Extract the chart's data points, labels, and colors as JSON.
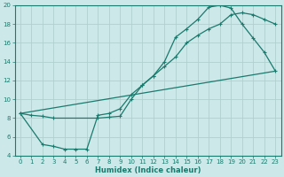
{
  "xlabel": "Humidex (Indice chaleur)",
  "bg_color": "#cce8e8",
  "grid_color": "#b0d0d0",
  "line_color": "#1a7a6e",
  "xlim": [
    -0.5,
    23.5
  ],
  "ylim": [
    4,
    20
  ],
  "xticks": [
    0,
    1,
    2,
    3,
    4,
    5,
    6,
    7,
    8,
    9,
    10,
    11,
    12,
    13,
    14,
    15,
    16,
    17,
    18,
    19,
    20,
    21,
    22,
    23
  ],
  "yticks": [
    4,
    6,
    8,
    10,
    12,
    14,
    16,
    18,
    20
  ],
  "line1_x": [
    0,
    1,
    2,
    3,
    7,
    8,
    9,
    10,
    11,
    12,
    13,
    14,
    15,
    16,
    17,
    18,
    19,
    20,
    21,
    22,
    23
  ],
  "line1_y": [
    8.5,
    8.3,
    8.2,
    8.0,
    8.0,
    8.1,
    8.2,
    10.0,
    11.5,
    12.5,
    14.0,
    16.6,
    17.5,
    18.5,
    19.8,
    20.0,
    19.7,
    18.0,
    16.5,
    15.0,
    13.0
  ],
  "line2_x": [
    0,
    2,
    3,
    4,
    5,
    6,
    7,
    8,
    9,
    10,
    11,
    12,
    13,
    14,
    15,
    16,
    17,
    18,
    19,
    20,
    21,
    22,
    23
  ],
  "line2_y": [
    8.5,
    5.2,
    5.0,
    4.7,
    4.7,
    4.7,
    8.3,
    8.5,
    9.0,
    10.5,
    11.5,
    12.5,
    13.5,
    14.5,
    16.0,
    16.8,
    17.5,
    18.0,
    19.0,
    19.2,
    19.0,
    18.5,
    18.0
  ],
  "line3_x": [
    0,
    23
  ],
  "line3_y": [
    8.5,
    13.0
  ]
}
